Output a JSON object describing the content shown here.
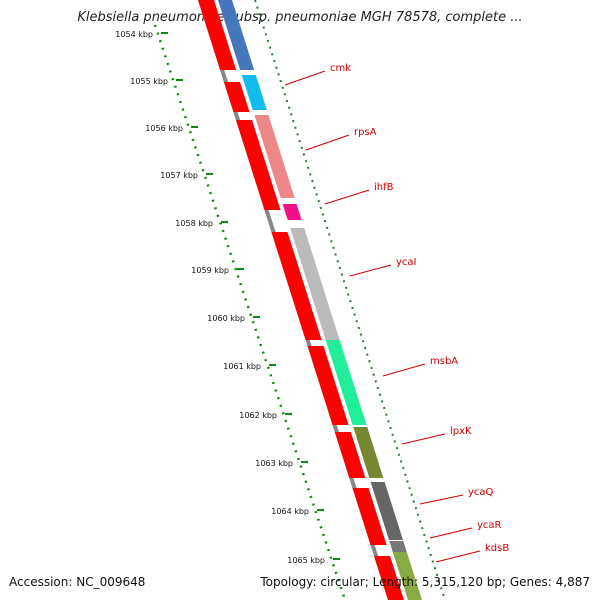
{
  "title": "Klebsiella pneumoniae subsp. pneumoniae MGH 78578, complete ...",
  "footer": {
    "accession": "Accession: NC_009648",
    "summary": "Topology: circular; Length: 5,315,120 bp; Genes: 4,887"
  },
  "ruler": {
    "ticks": [
      "1054 kbp",
      "1055 kbp",
      "1056 kbp",
      "1057 kbp",
      "1058 kbp",
      "1059 kbp",
      "1060 kbp",
      "1061 kbp",
      "1062 kbp",
      "1063 kbp",
      "1064 kbp",
      "1065 kbp"
    ],
    "color": "#118811"
  },
  "genes": [
    {
      "name": "",
      "color": "#4477bb"
    },
    {
      "name": "cmk",
      "color": "#11bbee"
    },
    {
      "name": "rpsA",
      "color": "#ee8888"
    },
    {
      "name": "ihfB",
      "color": "#ee1188"
    },
    {
      "name": "ycaI",
      "color": "#bbbbbb"
    },
    {
      "name": "msbA",
      "color": "#22ee99"
    },
    {
      "name": "lpxK",
      "color": "#778833"
    },
    {
      "name": "ycaQ",
      "color": "#666666"
    },
    {
      "name": "ycaR",
      "color": "#777777"
    },
    {
      "name": "kdsB",
      "color": "#88aa44"
    }
  ],
  "colors": {
    "orf": "#ff0000",
    "label": "#cc0000",
    "backbone": "#888888"
  }
}
